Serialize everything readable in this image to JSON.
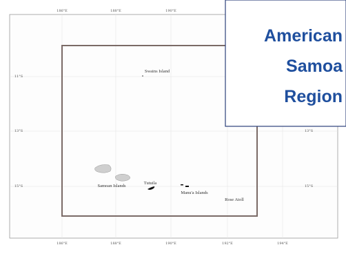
{
  "title": [
    "American",
    "Samoa",
    "Region"
  ],
  "lon_labels_top": [
    "186°E",
    "188°E",
    "190°E"
  ],
  "lon_labels_bottom": [
    "186°E",
    "188°E",
    "190°E",
    "192°E",
    "194°E"
  ],
  "lat_labels_left": [
    "11°S",
    "13°S",
    "15°S"
  ],
  "lat_labels_right": [
    "13°S",
    "15°S"
  ],
  "places": [
    "Swains Island",
    "Samoan Islands",
    "Tutuila",
    "Manu'a Islands",
    "Rose Atoll"
  ]
}
